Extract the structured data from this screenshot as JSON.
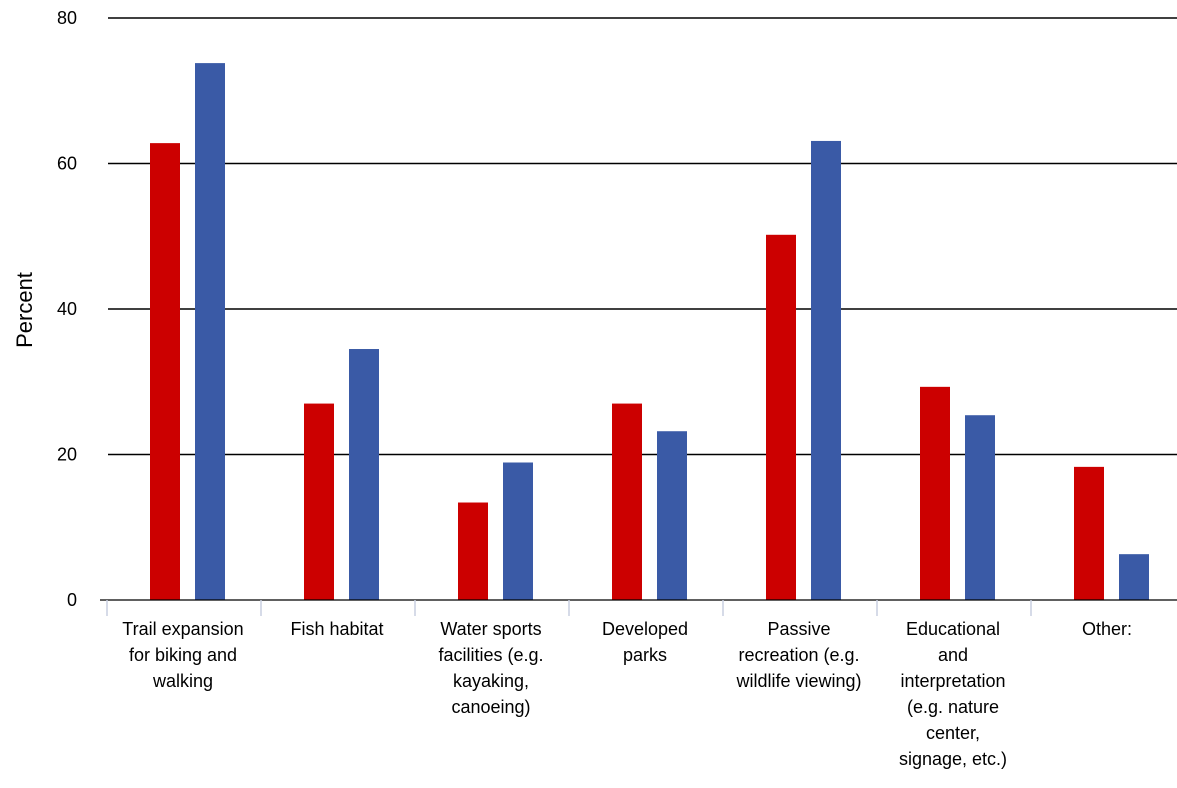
{
  "chart_data": {
    "type": "bar",
    "title": "",
    "xlabel": "",
    "ylabel": "Percent",
    "ylim": [
      0,
      80
    ],
    "yticks": [
      0,
      20,
      40,
      60,
      80
    ],
    "grid": true,
    "legend": "none",
    "categories": [
      [
        "Trail expansion",
        "for biking and",
        "walking"
      ],
      [
        "Fish habitat"
      ],
      [
        "Water sports",
        "facilities (e.g.",
        "kayaking,",
        "canoeing)"
      ],
      [
        "Developed",
        "parks"
      ],
      [
        "Passive",
        "recreation (e.g.",
        "wildlife viewing)"
      ],
      [
        "Educational",
        "and",
        "interpretation",
        "(e.g. nature",
        "center,",
        "signage, etc.)"
      ],
      [
        "Other:"
      ]
    ],
    "series": [
      {
        "color": "#cc0000",
        "values": [
          62.8,
          27.0,
          13.4,
          27.0,
          50.2,
          29.3,
          18.3
        ]
      },
      {
        "color": "#3a5aa6",
        "values": [
          73.8,
          34.5,
          18.9,
          23.2,
          63.1,
          25.4,
          6.3
        ]
      }
    ]
  }
}
